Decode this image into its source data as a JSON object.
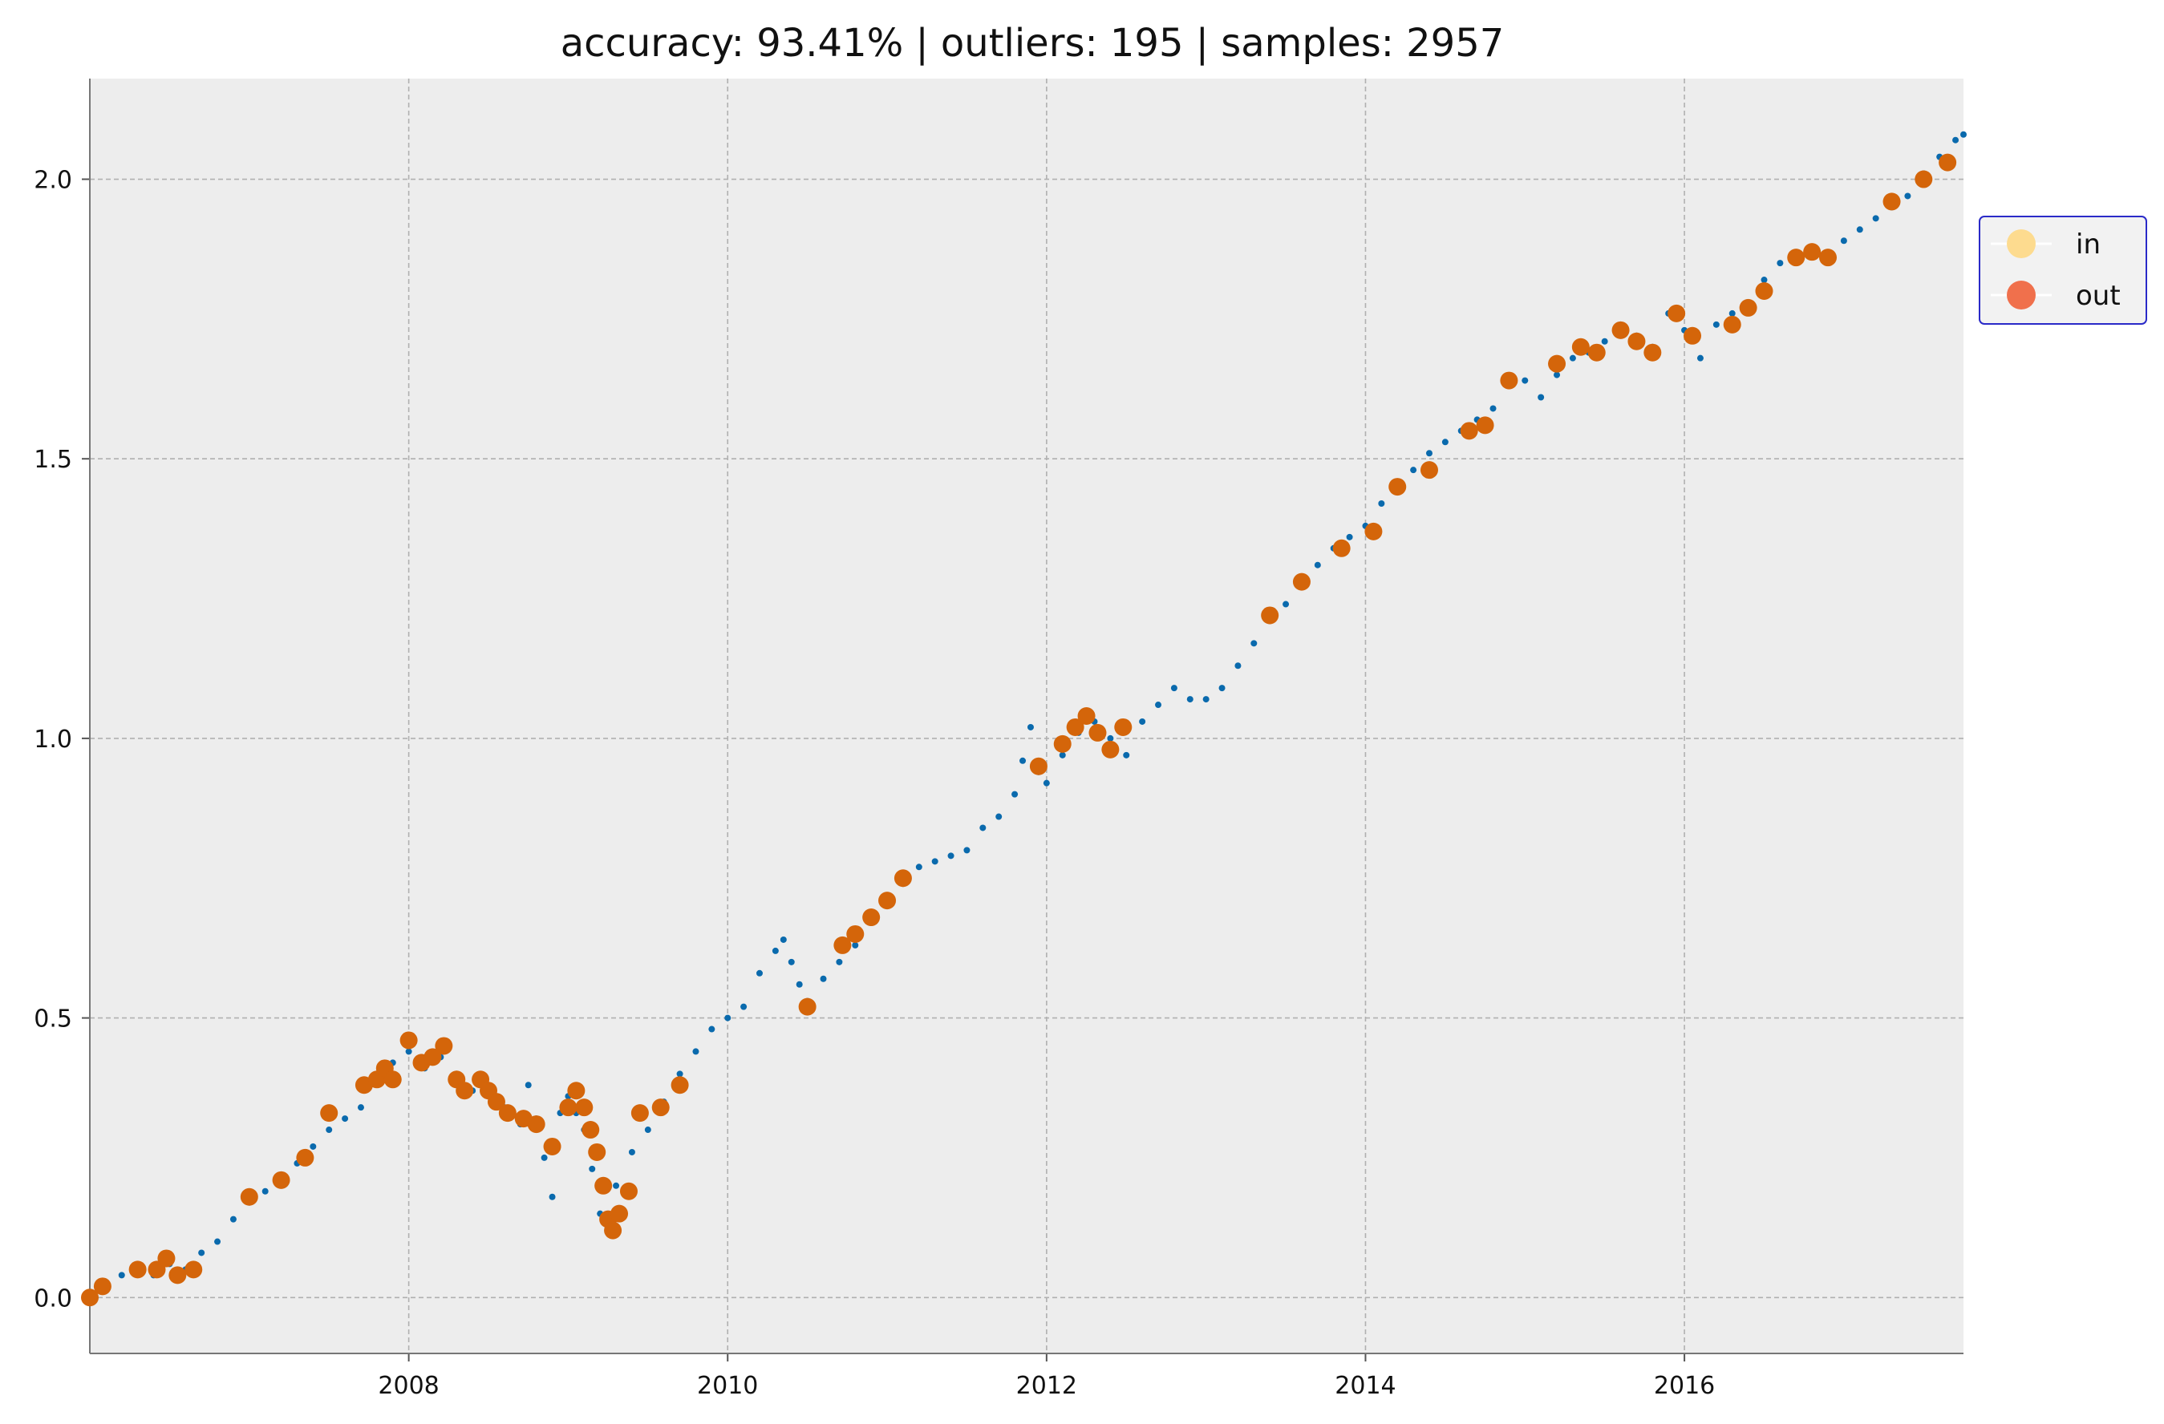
{
  "chart_data": {
    "type": "scatter",
    "title": "accuracy: 93.41% | outliers: 195 | samples: 2957",
    "xlabel": "",
    "ylabel": "",
    "xlim": [
      2006.0,
      2017.75
    ],
    "ylim": [
      -0.1,
      2.18
    ],
    "x_ticks": [
      {
        "value": 2008,
        "label": "2008"
      },
      {
        "value": 2010,
        "label": "2010"
      },
      {
        "value": 2012,
        "label": "2012"
      },
      {
        "value": 2014,
        "label": "2014"
      },
      {
        "value": 2016,
        "label": "2016"
      }
    ],
    "y_ticks": [
      {
        "value": 0.0,
        "label": "0.0"
      },
      {
        "value": 0.5,
        "label": "0.5"
      },
      {
        "value": 1.0,
        "label": "1.0"
      },
      {
        "value": 1.5,
        "label": "1.5"
      },
      {
        "value": 2.0,
        "label": "2.0"
      }
    ],
    "grid": true,
    "legend_placement": "right, upper (outside plot)",
    "legend": [
      {
        "label": "in",
        "color": "#fddb8f"
      },
      {
        "label": "out",
        "color": "#f0704c"
      }
    ],
    "colors": {
      "plot_background": "#ededed",
      "grid": "#b0b0b0",
      "inlier_points": "#0a6aad",
      "outlier_points": "#d4650a",
      "legend_border": "#2a2ac8"
    },
    "series": [
      {
        "name": "in",
        "marker": "small-dot",
        "points": [
          [
            2006.0,
            0.0
          ],
          [
            2006.1,
            0.02
          ],
          [
            2006.2,
            0.04
          ],
          [
            2006.3,
            0.05
          ],
          [
            2006.4,
            0.04
          ],
          [
            2006.5,
            0.06
          ],
          [
            2006.6,
            0.05
          ],
          [
            2006.7,
            0.08
          ],
          [
            2006.8,
            0.1
          ],
          [
            2006.9,
            0.14
          ],
          [
            2007.0,
            0.17
          ],
          [
            2007.1,
            0.19
          ],
          [
            2007.2,
            0.22
          ],
          [
            2007.3,
            0.24
          ],
          [
            2007.4,
            0.27
          ],
          [
            2007.5,
            0.3
          ],
          [
            2007.6,
            0.32
          ],
          [
            2007.7,
            0.34
          ],
          [
            2007.8,
            0.39
          ],
          [
            2007.9,
            0.42
          ],
          [
            2008.0,
            0.44
          ],
          [
            2008.1,
            0.41
          ],
          [
            2008.2,
            0.43
          ],
          [
            2008.3,
            0.4
          ],
          [
            2008.4,
            0.37
          ],
          [
            2008.5,
            0.38
          ],
          [
            2008.6,
            0.34
          ],
          [
            2008.7,
            0.31
          ],
          [
            2008.75,
            0.38
          ],
          [
            2008.8,
            0.32
          ],
          [
            2008.85,
            0.25
          ],
          [
            2008.9,
            0.18
          ],
          [
            2008.95,
            0.33
          ],
          [
            2009.0,
            0.36
          ],
          [
            2009.05,
            0.33
          ],
          [
            2009.1,
            0.3
          ],
          [
            2009.15,
            0.23
          ],
          [
            2009.2,
            0.15
          ],
          [
            2009.3,
            0.2
          ],
          [
            2009.4,
            0.26
          ],
          [
            2009.5,
            0.3
          ],
          [
            2009.6,
            0.35
          ],
          [
            2009.7,
            0.4
          ],
          [
            2009.8,
            0.44
          ],
          [
            2009.9,
            0.48
          ],
          [
            2010.0,
            0.5
          ],
          [
            2010.1,
            0.52
          ],
          [
            2010.2,
            0.58
          ],
          [
            2010.3,
            0.62
          ],
          [
            2010.35,
            0.64
          ],
          [
            2010.4,
            0.6
          ],
          [
            2010.45,
            0.56
          ],
          [
            2010.5,
            0.53
          ],
          [
            2010.6,
            0.57
          ],
          [
            2010.7,
            0.6
          ],
          [
            2010.8,
            0.63
          ],
          [
            2010.9,
            0.67
          ],
          [
            2011.0,
            0.7
          ],
          [
            2011.1,
            0.74
          ],
          [
            2011.2,
            0.77
          ],
          [
            2011.3,
            0.78
          ],
          [
            2011.4,
            0.79
          ],
          [
            2011.5,
            0.8
          ],
          [
            2011.6,
            0.84
          ],
          [
            2011.7,
            0.86
          ],
          [
            2011.8,
            0.9
          ],
          [
            2011.85,
            0.96
          ],
          [
            2011.9,
            1.02
          ],
          [
            2011.95,
            0.94
          ],
          [
            2012.0,
            0.92
          ],
          [
            2012.1,
            0.97
          ],
          [
            2012.2,
            1.01
          ],
          [
            2012.3,
            1.03
          ],
          [
            2012.4,
            1.0
          ],
          [
            2012.5,
            0.97
          ],
          [
            2012.6,
            1.03
          ],
          [
            2012.7,
            1.06
          ],
          [
            2012.8,
            1.09
          ],
          [
            2012.9,
            1.07
          ],
          [
            2013.0,
            1.07
          ],
          [
            2013.1,
            1.09
          ],
          [
            2013.2,
            1.13
          ],
          [
            2013.3,
            1.17
          ],
          [
            2013.4,
            1.21
          ],
          [
            2013.5,
            1.24
          ],
          [
            2013.6,
            1.27
          ],
          [
            2013.7,
            1.31
          ],
          [
            2013.8,
            1.34
          ],
          [
            2013.9,
            1.36
          ],
          [
            2014.0,
            1.38
          ],
          [
            2014.1,
            1.42
          ],
          [
            2014.2,
            1.45
          ],
          [
            2014.3,
            1.48
          ],
          [
            2014.4,
            1.51
          ],
          [
            2014.5,
            1.53
          ],
          [
            2014.6,
            1.55
          ],
          [
            2014.7,
            1.57
          ],
          [
            2014.8,
            1.59
          ],
          [
            2014.9,
            1.64
          ],
          [
            2015.0,
            1.64
          ],
          [
            2015.1,
            1.61
          ],
          [
            2015.2,
            1.65
          ],
          [
            2015.3,
            1.68
          ],
          [
            2015.4,
            1.69
          ],
          [
            2015.5,
            1.71
          ],
          [
            2015.6,
            1.74
          ],
          [
            2015.7,
            1.72
          ],
          [
            2015.8,
            1.7
          ],
          [
            2015.9,
            1.76
          ],
          [
            2016.0,
            1.73
          ],
          [
            2016.1,
            1.68
          ],
          [
            2016.2,
            1.74
          ],
          [
            2016.3,
            1.76
          ],
          [
            2016.4,
            1.78
          ],
          [
            2016.5,
            1.82
          ],
          [
            2016.6,
            1.85
          ],
          [
            2016.7,
            1.86
          ],
          [
            2016.8,
            1.87
          ],
          [
            2016.9,
            1.86
          ],
          [
            2017.0,
            1.89
          ],
          [
            2017.1,
            1.91
          ],
          [
            2017.2,
            1.93
          ],
          [
            2017.3,
            1.95
          ],
          [
            2017.4,
            1.97
          ],
          [
            2017.5,
            2.01
          ],
          [
            2017.6,
            2.04
          ],
          [
            2017.7,
            2.07
          ],
          [
            2017.75,
            2.08
          ]
        ]
      },
      {
        "name": "out",
        "marker": "large-dot",
        "points": [
          [
            2006.0,
            0.0
          ],
          [
            2006.08,
            0.02
          ],
          [
            2006.3,
            0.05
          ],
          [
            2006.42,
            0.05
          ],
          [
            2006.48,
            0.07
          ],
          [
            2006.55,
            0.04
          ],
          [
            2006.65,
            0.05
          ],
          [
            2007.0,
            0.18
          ],
          [
            2007.2,
            0.21
          ],
          [
            2007.35,
            0.25
          ],
          [
            2007.5,
            0.33
          ],
          [
            2007.72,
            0.38
          ],
          [
            2007.8,
            0.39
          ],
          [
            2007.85,
            0.41
          ],
          [
            2007.9,
            0.39
          ],
          [
            2008.0,
            0.46
          ],
          [
            2008.08,
            0.42
          ],
          [
            2008.15,
            0.43
          ],
          [
            2008.22,
            0.45
          ],
          [
            2008.3,
            0.39
          ],
          [
            2008.35,
            0.37
          ],
          [
            2008.45,
            0.39
          ],
          [
            2008.5,
            0.37
          ],
          [
            2008.55,
            0.35
          ],
          [
            2008.62,
            0.33
          ],
          [
            2008.72,
            0.32
          ],
          [
            2008.8,
            0.31
          ],
          [
            2008.9,
            0.27
          ],
          [
            2009.0,
            0.34
          ],
          [
            2009.05,
            0.37
          ],
          [
            2009.1,
            0.34
          ],
          [
            2009.14,
            0.3
          ],
          [
            2009.18,
            0.26
          ],
          [
            2009.22,
            0.2
          ],
          [
            2009.25,
            0.14
          ],
          [
            2009.28,
            0.12
          ],
          [
            2009.32,
            0.15
          ],
          [
            2009.38,
            0.19
          ],
          [
            2009.45,
            0.33
          ],
          [
            2009.58,
            0.34
          ],
          [
            2009.7,
            0.38
          ],
          [
            2010.5,
            0.52
          ],
          [
            2010.72,
            0.63
          ],
          [
            2010.8,
            0.65
          ],
          [
            2010.9,
            0.68
          ],
          [
            2011.0,
            0.71
          ],
          [
            2011.1,
            0.75
          ],
          [
            2011.95,
            0.95
          ],
          [
            2012.1,
            0.99
          ],
          [
            2012.18,
            1.02
          ],
          [
            2012.25,
            1.04
          ],
          [
            2012.32,
            1.01
          ],
          [
            2012.4,
            0.98
          ],
          [
            2012.48,
            1.02
          ],
          [
            2013.4,
            1.22
          ],
          [
            2013.6,
            1.28
          ],
          [
            2013.85,
            1.34
          ],
          [
            2014.05,
            1.37
          ],
          [
            2014.2,
            1.45
          ],
          [
            2014.4,
            1.48
          ],
          [
            2014.65,
            1.55
          ],
          [
            2014.75,
            1.56
          ],
          [
            2014.9,
            1.64
          ],
          [
            2015.2,
            1.67
          ],
          [
            2015.35,
            1.7
          ],
          [
            2015.45,
            1.69
          ],
          [
            2015.6,
            1.73
          ],
          [
            2015.7,
            1.71
          ],
          [
            2015.8,
            1.69
          ],
          [
            2015.95,
            1.76
          ],
          [
            2016.05,
            1.72
          ],
          [
            2016.3,
            1.74
          ],
          [
            2016.4,
            1.77
          ],
          [
            2016.5,
            1.8
          ],
          [
            2016.7,
            1.86
          ],
          [
            2016.8,
            1.87
          ],
          [
            2016.9,
            1.86
          ],
          [
            2017.3,
            1.96
          ],
          [
            2017.5,
            2.0
          ],
          [
            2017.65,
            2.03
          ]
        ]
      }
    ]
  }
}
